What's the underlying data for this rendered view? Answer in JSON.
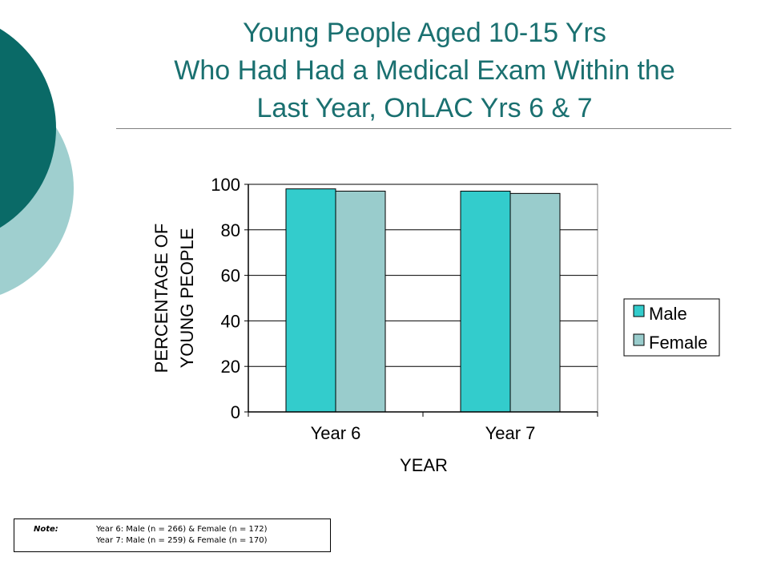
{
  "slide": {
    "title_lines": [
      "Young People Aged 10-15 Yrs",
      "Who Had Had a Medical Exam Within the",
      "Last Year, OnLAC Yrs 6 & 7"
    ],
    "colors": {
      "title": "#1a7070",
      "deco_dark": "#0a6a67",
      "deco_light": "#9fcfcf"
    }
  },
  "chart_data": {
    "type": "bar",
    "categories": [
      "Year 6",
      "Year 7"
    ],
    "series": [
      {
        "name": "Male",
        "values": [
          98,
          97
        ],
        "color": "#33cccc"
      },
      {
        "name": "Female",
        "values": [
          97,
          96
        ],
        "color": "#99cccc"
      }
    ],
    "xlabel": "YEAR",
    "ylabel_lines": [
      "PERCENTAGE OF",
      "YOUNG PEOPLE"
    ],
    "ylim": [
      0,
      100
    ],
    "yticks": [
      0,
      20,
      40,
      60,
      80,
      100
    ],
    "grid": true,
    "legend": "right"
  },
  "note": {
    "label": "Note:",
    "lines": [
      "Year 6: Male (n = 266) & Female (n = 172)",
      "Year 7: Male (n = 259) & Female (n = 170)"
    ]
  }
}
